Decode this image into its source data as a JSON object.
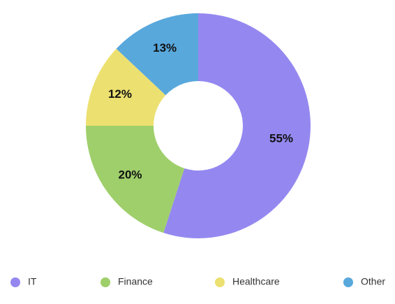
{
  "chart_data": {
    "type": "pie",
    "donut": true,
    "categories": [
      "IT",
      "Finance",
      "Healthcare",
      "Other"
    ],
    "values": [
      55,
      20,
      12,
      13
    ],
    "value_labels": [
      "55%",
      "20%",
      "12%",
      "13%"
    ],
    "colors": [
      "#9488f0",
      "#9fcf6b",
      "#ece070",
      "#58a8dc"
    ],
    "legend": "bottom"
  }
}
